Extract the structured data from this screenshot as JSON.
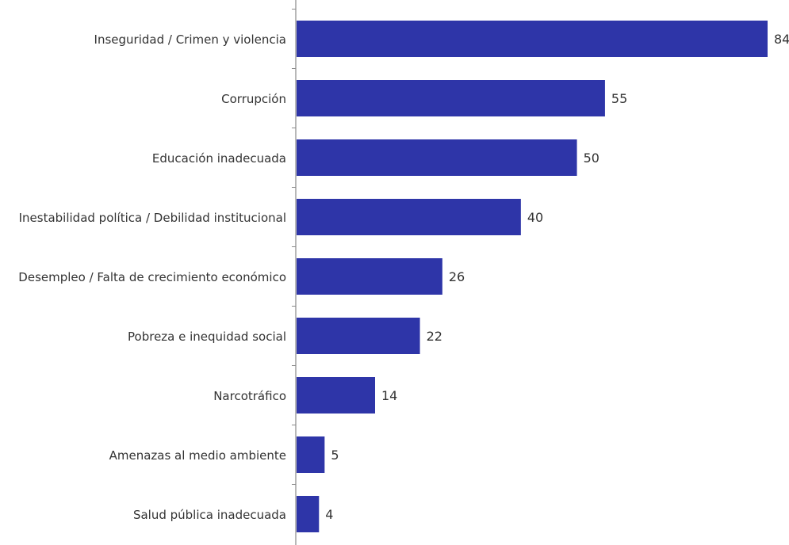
{
  "chart_data": {
    "type": "bar",
    "orientation": "horizontal",
    "title": "",
    "xlabel": "",
    "ylabel": "",
    "xlim": [
      0,
      84
    ],
    "grid": false,
    "legend": "none",
    "bar_color": "#2E35A8",
    "categories": [
      "Inseguridad / Crimen y violencia",
      "Corrupción",
      "Educación inadecuada",
      "Inestabilidad política / Debilidad institucional",
      "Desempleo / Falta de crecimiento económico",
      "Pobreza e inequidad social",
      "Narcotráfico",
      "Amenazas al medio ambiente",
      "Salud pública inadecuada"
    ],
    "values": [
      84,
      55,
      50,
      40,
      26,
      22,
      14,
      5,
      4
    ],
    "value_labels": [
      "84",
      "55",
      "50",
      "40",
      "26",
      "22",
      "14",
      "5",
      "4"
    ]
  }
}
